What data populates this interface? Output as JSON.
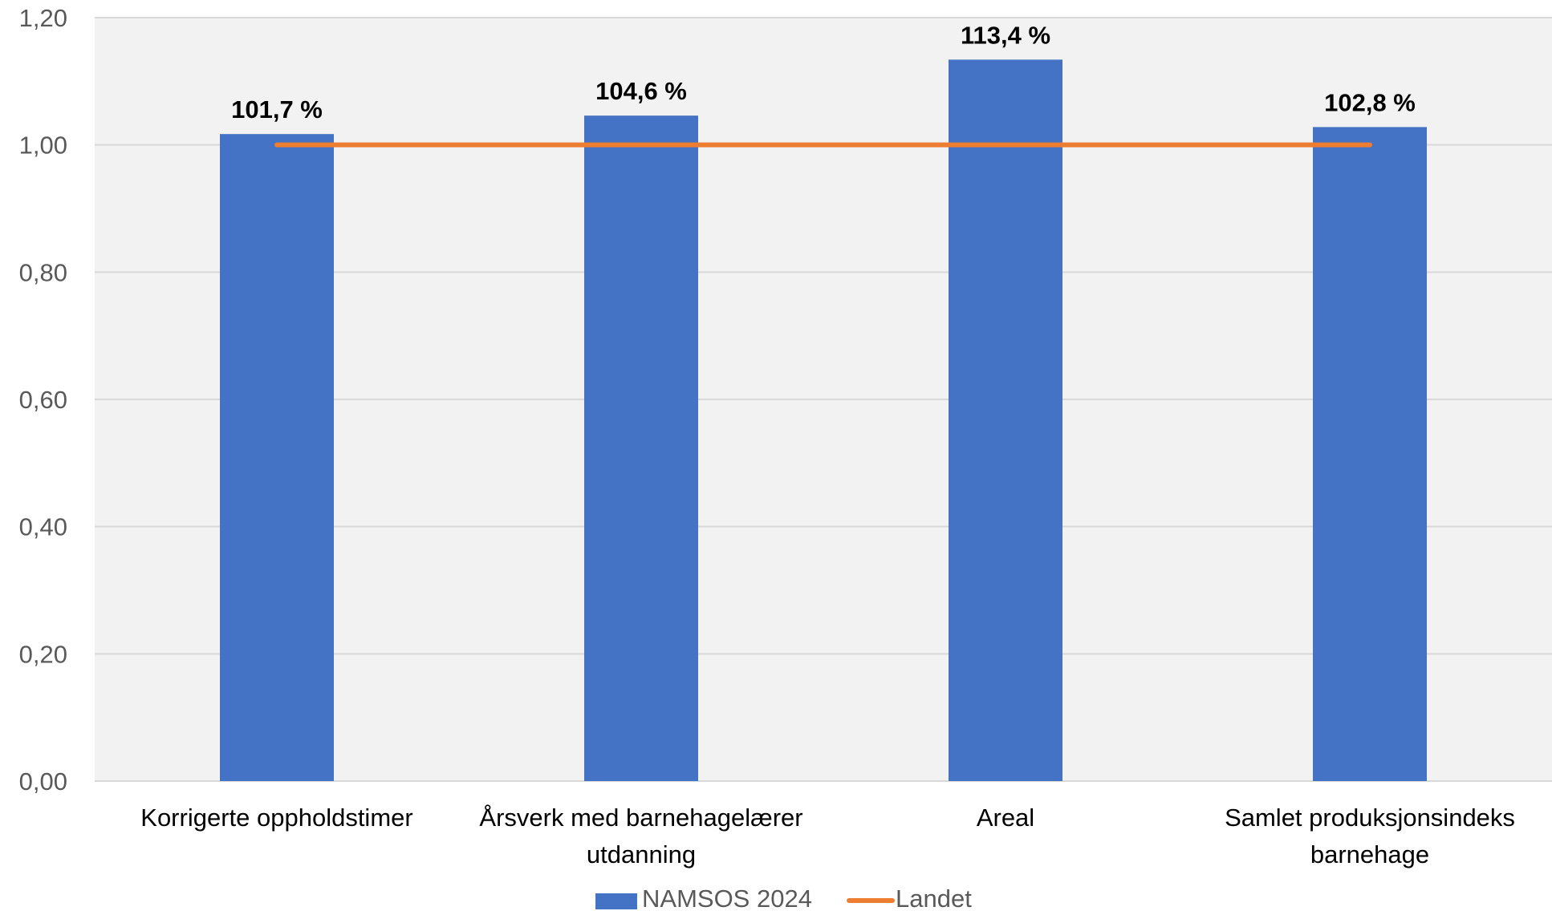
{
  "chart_data": {
    "type": "bar",
    "categories": [
      [
        "Korrigerte oppholdstimer"
      ],
      [
        "Årsverk med barnehagelærer",
        "utdanning"
      ],
      [
        "Areal"
      ],
      [
        "Samlet produksjonsindeks",
        "barnehage"
      ]
    ],
    "series": [
      {
        "name": "NAMSOS 2024",
        "type": "bar",
        "color": "#4472C4",
        "values": [
          1.017,
          1.046,
          1.134,
          1.028
        ],
        "data_labels": [
          "101,7 %",
          "104,6 %",
          "113,4 %",
          "102,8 %"
        ]
      },
      {
        "name": "Landet",
        "type": "line",
        "color": "#ED7D31",
        "values": [
          1.0,
          1.0,
          1.0,
          1.0
        ]
      }
    ],
    "y_ticks": [
      "0,00",
      "0,20",
      "0,40",
      "0,60",
      "0,80",
      "1,00",
      "1,20"
    ],
    "ylim": [
      0,
      1.2
    ],
    "grid": true,
    "legend": "bottom",
    "plot_background": "#F2F2F2",
    "gridline_color": "#D9D9D9"
  }
}
